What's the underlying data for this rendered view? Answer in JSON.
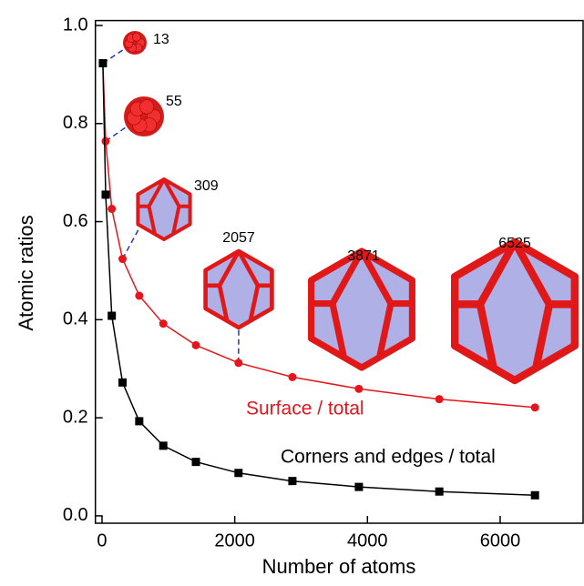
{
  "chart_data": {
    "type": "line",
    "x_label": "Number of atoms",
    "y_label": "Atomic ratios",
    "x": [
      13,
      55,
      147,
      309,
      561,
      923,
      1415,
      2057,
      2869,
      3871,
      5083,
      6525
    ],
    "series": [
      {
        "name": "Surface / total",
        "color": "#e8141b",
        "marker": "circle",
        "values": [
          0.923,
          0.764,
          0.626,
          0.524,
          0.449,
          0.392,
          0.348,
          0.312,
          0.283,
          0.259,
          0.238,
          0.221
        ]
      },
      {
        "name": "Corners and edges / total",
        "color": "#000000",
        "marker": "square",
        "values": [
          0.923,
          0.655,
          0.408,
          0.272,
          0.193,
          0.143,
          0.11,
          0.0875,
          0.071,
          0.059,
          0.0496,
          0.042
        ]
      }
    ],
    "xlim": [
      -100,
      7250
    ],
    "ylim": [
      -0.015,
      1.01
    ],
    "xticks": [
      0,
      2000,
      4000,
      6000
    ],
    "yticks": [
      {
        "value": 0,
        "label": "0.0"
      },
      0.2,
      0.4,
      0.6,
      0.8,
      {
        "value": 1,
        "label": "1.0"
      }
    ],
    "annotations": [
      "13",
      "55",
      "309",
      "2057",
      "3871",
      "6525"
    ]
  }
}
